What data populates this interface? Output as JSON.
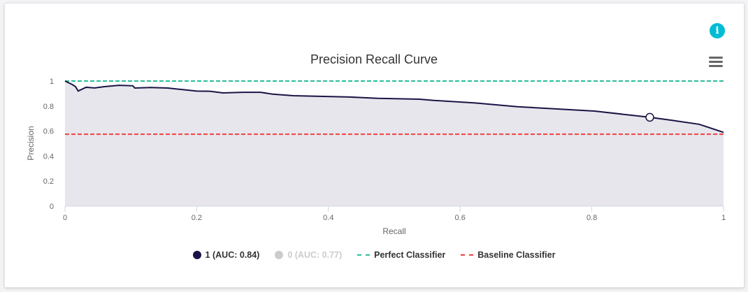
{
  "chart_data": {
    "type": "area",
    "title": "Precision Recall Curve",
    "xlabel": "Recall",
    "ylabel": "Precision",
    "xlim": [
      0,
      1
    ],
    "ylim": [
      0,
      1
    ],
    "xticks": [
      "0",
      "0.2",
      "0.4",
      "0.6",
      "0.8",
      "1"
    ],
    "yticks": [
      "0",
      "0.2",
      "0.4",
      "0.6",
      "0.8",
      "1"
    ],
    "series": [
      {
        "name": "1 (AUC: 0.84)",
        "color": "#1a1446",
        "fill": "#e7e6ec",
        "visible": true,
        "x": [
          0,
          0.011,
          0.016,
          0.02,
          0.032,
          0.045,
          0.06,
          0.082,
          0.103,
          0.106,
          0.13,
          0.156,
          0.2,
          0.22,
          0.24,
          0.27,
          0.297,
          0.315,
          0.347,
          0.432,
          0.475,
          0.538,
          0.56,
          0.623,
          0.687,
          0.75,
          0.804,
          0.888,
          0.92,
          0.963,
          1.0
        ],
        "y": [
          1,
          0.972,
          0.955,
          0.92,
          0.95,
          0.945,
          0.955,
          0.966,
          0.962,
          0.944,
          0.948,
          0.944,
          0.92,
          0.918,
          0.905,
          0.91,
          0.91,
          0.895,
          0.883,
          0.872,
          0.862,
          0.855,
          0.845,
          0.825,
          0.795,
          0.776,
          0.76,
          0.71,
          0.687,
          0.654,
          0.59
        ]
      },
      {
        "name": "0 (AUC: 0.77)",
        "color": "#cccccc",
        "visible": false
      }
    ],
    "reference_lines": [
      {
        "name": "Perfect Classifier",
        "y": 1,
        "color": "#2bbd9b"
      },
      {
        "name": "Baseline Classifier",
        "y": 0.575,
        "color": "#ef4040"
      }
    ],
    "highlight_point": {
      "x": 0.888,
      "y": 0.71
    },
    "legend_position": "bottom"
  }
}
